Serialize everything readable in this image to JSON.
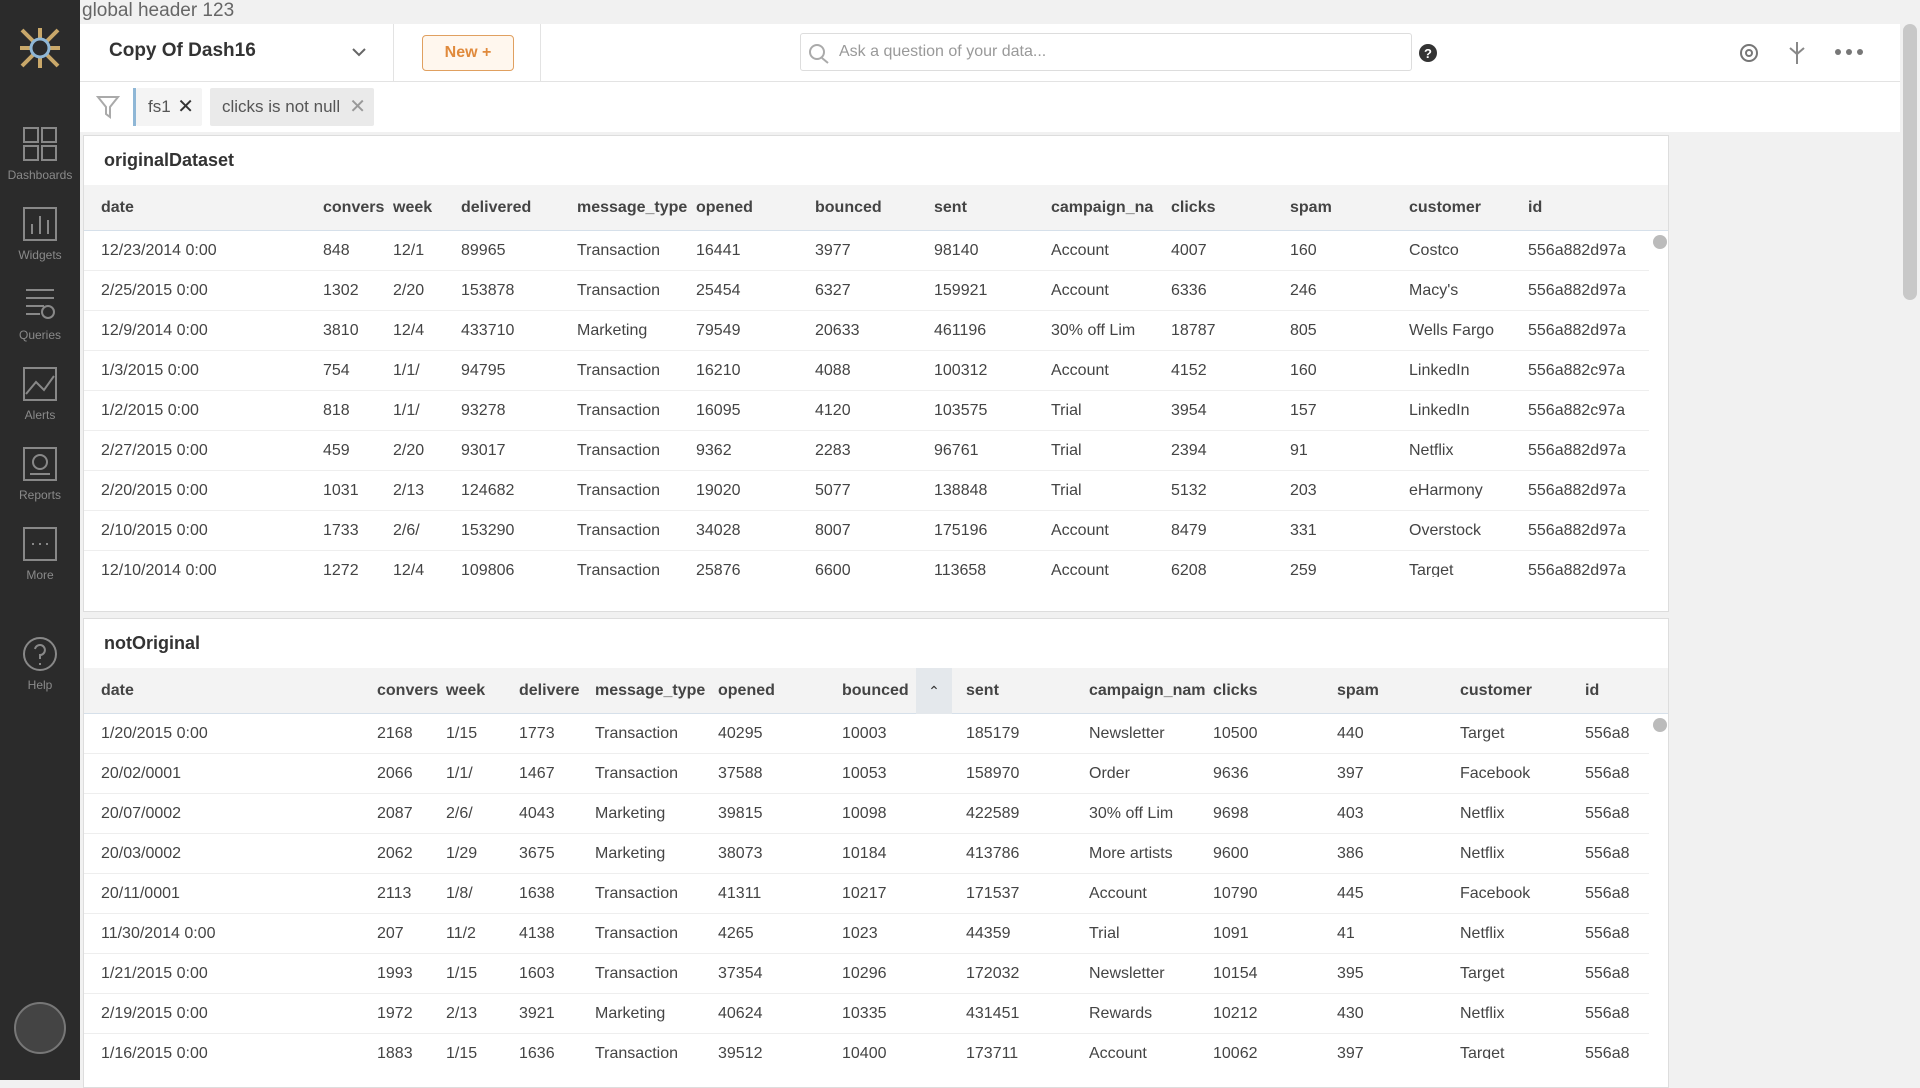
{
  "global_header": "global header 123",
  "toolbar": {
    "dashboard_name": "Copy Of Dash16",
    "new_button": "New +",
    "search_placeholder": "Ask a question of your data..."
  },
  "sidebar": [
    "Dashboards",
    "Widgets",
    "Queries",
    "Alerts",
    "Reports",
    "More",
    "Help"
  ],
  "filters": [
    "fs1",
    "clicks is not null"
  ],
  "tables": [
    {
      "title": "originalDataset",
      "columns": [
        "date",
        "convers",
        "week",
        "delivered",
        "message_type",
        "opened",
        "bounced",
        "sent",
        "campaign_na",
        "clicks",
        "spam",
        "customer",
        "id"
      ],
      "rows": [
        [
          "12/23/2014 0:00",
          "848",
          "12/1",
          "89965",
          "Transaction",
          "16441",
          "3977",
          "98140",
          "Account",
          "4007",
          "160",
          "Costco",
          "556a882d97a"
        ],
        [
          "2/25/2015 0:00",
          "1302",
          "2/20",
          "153878",
          "Transaction",
          "25454",
          "6327",
          "159921",
          "Account",
          "6336",
          "246",
          "Macy's",
          "556a882d97a"
        ],
        [
          "12/9/2014 0:00",
          "3810",
          "12/4",
          "433710",
          "Marketing",
          "79549",
          "20633",
          "461196",
          "30% off Lim",
          "18787",
          "805",
          "Wells Fargo",
          "556a882d97a"
        ],
        [
          "1/3/2015 0:00",
          "754",
          "1/1/",
          "94795",
          "Transaction",
          "16210",
          "4088",
          "100312",
          "Account",
          "4152",
          "160",
          "LinkedIn",
          "556a882c97a"
        ],
        [
          "1/2/2015 0:00",
          "818",
          "1/1/",
          "93278",
          "Transaction",
          "16095",
          "4120",
          "103575",
          "Trial",
          "3954",
          "157",
          "LinkedIn",
          "556a882c97a"
        ],
        [
          "2/27/2015 0:00",
          "459",
          "2/20",
          "93017",
          "Transaction",
          "9362",
          "2283",
          "96761",
          "Trial",
          "2394",
          "91",
          "Netflix",
          "556a882d97a"
        ],
        [
          "2/20/2015 0:00",
          "1031",
          "2/13",
          "124682",
          "Transaction",
          "19020",
          "5077",
          "138848",
          "Trial",
          "5132",
          "203",
          "eHarmony",
          "556a882d97a"
        ],
        [
          "2/10/2015 0:00",
          "1733",
          "2/6/",
          "153290",
          "Transaction",
          "34028",
          "8007",
          "175196",
          "Account",
          "8479",
          "331",
          "Overstock",
          "556a882d97a"
        ],
        [
          "12/10/2014 0:00",
          "1272",
          "12/4",
          "109806",
          "Transaction",
          "25876",
          "6600",
          "113658",
          "Account",
          "6208",
          "259",
          "Target",
          "556a882d97a"
        ]
      ]
    },
    {
      "title": "notOriginal",
      "columns": [
        "date",
        "convers",
        "week",
        "delivere",
        "message_type",
        "opened",
        "bounced",
        "sent",
        "campaign_nam",
        "clicks",
        "spam",
        "customer",
        "id"
      ],
      "rows": [
        [
          "1/20/2015 0:00",
          "2168",
          "1/15",
          "1773",
          "Transaction",
          "40295",
          "10003",
          "185179",
          "Newsletter",
          "10500",
          "440",
          "Target",
          "556a8"
        ],
        [
          "20/02/0001",
          "2066",
          "1/1/",
          "1467",
          "Transaction",
          "37588",
          "10053",
          "158970",
          "Order",
          "9636",
          "397",
          "Facebook",
          "556a8"
        ],
        [
          "20/07/0002",
          "2087",
          "2/6/",
          "4043",
          "Marketing",
          "39815",
          "10098",
          "422589",
          "30% off Lim",
          "9698",
          "403",
          "Netflix",
          "556a8"
        ],
        [
          "20/03/0002",
          "2062",
          "1/29",
          "3675",
          "Marketing",
          "38073",
          "10184",
          "413786",
          "More artists",
          "9600",
          "386",
          "Netflix",
          "556a8"
        ],
        [
          "20/11/0001",
          "2113",
          "1/8/",
          "1638",
          "Transaction",
          "41311",
          "10217",
          "171537",
          "Account",
          "10790",
          "445",
          "Facebook",
          "556a8"
        ],
        [
          "11/30/2014 0:00",
          "207",
          "11/2",
          "4138",
          "Transaction",
          "4265",
          "1023",
          "44359",
          "Trial",
          "1091",
          "41",
          "Netflix",
          "556a8"
        ],
        [
          "1/21/2015 0:00",
          "1993",
          "1/15",
          "1603",
          "Transaction",
          "37354",
          "10296",
          "172032",
          "Newsletter",
          "10154",
          "395",
          "Target",
          "556a8"
        ],
        [
          "2/19/2015 0:00",
          "1972",
          "2/13",
          "3921",
          "Marketing",
          "40624",
          "10335",
          "431451",
          "Rewards",
          "10212",
          "430",
          "Netflix",
          "556a8"
        ],
        [
          "1/16/2015 0:00",
          "1883",
          "1/15",
          "1636",
          "Transaction",
          "39512",
          "10400",
          "173711",
          "Account",
          "10062",
          "397",
          "Target",
          "556a8"
        ]
      ]
    }
  ]
}
